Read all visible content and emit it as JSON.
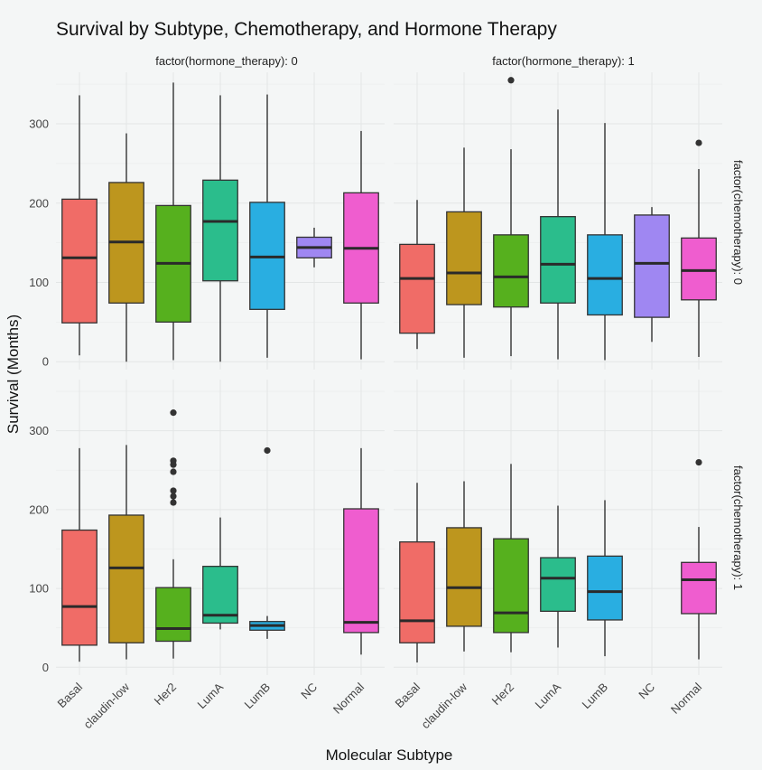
{
  "chart_data": {
    "type": "boxplot",
    "title": "Survival by Subtype, Chemotherapy, and Hormone Therapy",
    "xlabel": "Molecular Subtype",
    "ylabel": "Survival (Months)",
    "ylim": [
      -10,
      365
    ],
    "yticks": [
      0,
      100,
      200,
      300
    ],
    "grid": true,
    "categories": [
      "Basal",
      "claudin-low",
      "Her2",
      "LumA",
      "LumB",
      "NC",
      "Normal"
    ],
    "colors": {
      "Basal": "#f06c67",
      "claudin-low": "#bd961e",
      "Her2": "#56b01e",
      "LumA": "#2bbd8c",
      "LumB": "#29aee1",
      "NC": "#9f87f2",
      "Normal": "#ef5dcf"
    },
    "col_facet_labels": [
      "factor(hormone_therapy): 0",
      "factor(hormone_therapy): 1"
    ],
    "row_facet_labels": [
      "factor(chemotherapy): 0",
      "factor(chemotherapy): 1"
    ],
    "panels": [
      {
        "hormone_therapy": 0,
        "chemotherapy": 0,
        "boxes": [
          {
            "category": "Basal",
            "lower_whisker": 8,
            "q1": 49,
            "median": 131,
            "q3": 205,
            "upper_whisker": 336,
            "outliers": []
          },
          {
            "category": "claudin-low",
            "lower_whisker": 0,
            "q1": 74,
            "median": 151,
            "q3": 226,
            "upper_whisker": 288,
            "outliers": []
          },
          {
            "category": "Her2",
            "lower_whisker": 2,
            "q1": 50,
            "median": 124,
            "q3": 197,
            "upper_whisker": 352,
            "outliers": []
          },
          {
            "category": "LumA",
            "lower_whisker": 0,
            "q1": 102,
            "median": 177,
            "q3": 229,
            "upper_whisker": 336,
            "outliers": []
          },
          {
            "category": "LumB",
            "lower_whisker": 5,
            "q1": 66,
            "median": 132,
            "q3": 201,
            "upper_whisker": 337,
            "outliers": []
          },
          {
            "category": "NC",
            "lower_whisker": 119,
            "q1": 131,
            "median": 144,
            "q3": 157,
            "upper_whisker": 169,
            "outliers": []
          },
          {
            "category": "Normal",
            "lower_whisker": 3,
            "q1": 74,
            "median": 143,
            "q3": 213,
            "upper_whisker": 291,
            "outliers": []
          }
        ]
      },
      {
        "hormone_therapy": 1,
        "chemotherapy": 0,
        "boxes": [
          {
            "category": "Basal",
            "lower_whisker": 16,
            "q1": 36,
            "median": 105,
            "q3": 148,
            "upper_whisker": 204,
            "outliers": []
          },
          {
            "category": "claudin-low",
            "lower_whisker": 5,
            "q1": 72,
            "median": 112,
            "q3": 189,
            "upper_whisker": 270,
            "outliers": []
          },
          {
            "category": "Her2",
            "lower_whisker": 7,
            "q1": 69,
            "median": 107,
            "q3": 160,
            "upper_whisker": 268,
            "outliers": [
              355
            ]
          },
          {
            "category": "LumA",
            "lower_whisker": 3,
            "q1": 74,
            "median": 123,
            "q3": 183,
            "upper_whisker": 318,
            "outliers": []
          },
          {
            "category": "LumB",
            "lower_whisker": 2,
            "q1": 59,
            "median": 105,
            "q3": 160,
            "upper_whisker": 301,
            "outliers": []
          },
          {
            "category": "NC",
            "lower_whisker": 25,
            "q1": 56,
            "median": 124,
            "q3": 185,
            "upper_whisker": 195,
            "outliers": []
          },
          {
            "category": "Normal",
            "lower_whisker": 6,
            "q1": 78,
            "median": 115,
            "q3": 156,
            "upper_whisker": 243,
            "outliers": [
              276
            ]
          }
        ]
      },
      {
        "hormone_therapy": 0,
        "chemotherapy": 1,
        "boxes": [
          {
            "category": "Basal",
            "lower_whisker": 7,
            "q1": 28,
            "median": 77,
            "q3": 174,
            "upper_whisker": 278,
            "outliers": []
          },
          {
            "category": "claudin-low",
            "lower_whisker": 10,
            "q1": 31,
            "median": 126,
            "q3": 193,
            "upper_whisker": 282,
            "outliers": []
          },
          {
            "category": "Her2",
            "lower_whisker": 11,
            "q1": 33,
            "median": 49,
            "q3": 101,
            "upper_whisker": 137,
            "outliers": [
              209,
              217,
              224,
              248,
              257,
              262,
              323
            ]
          },
          {
            "category": "LumA",
            "lower_whisker": 48,
            "q1": 56,
            "median": 66,
            "q3": 128,
            "upper_whisker": 190,
            "outliers": []
          },
          {
            "category": "LumB",
            "lower_whisker": 36,
            "q1": 47,
            "median": 53,
            "q3": 58,
            "upper_whisker": 65,
            "outliers": [
              275
            ]
          },
          {
            "category": "Normal",
            "lower_whisker": 16,
            "q1": 44,
            "median": 57,
            "q3": 201,
            "upper_whisker": 278,
            "outliers": []
          }
        ]
      },
      {
        "hormone_therapy": 1,
        "chemotherapy": 1,
        "boxes": [
          {
            "category": "Basal",
            "lower_whisker": 6,
            "q1": 31,
            "median": 59,
            "q3": 159,
            "upper_whisker": 234,
            "outliers": []
          },
          {
            "category": "claudin-low",
            "lower_whisker": 20,
            "q1": 52,
            "median": 101,
            "q3": 177,
            "upper_whisker": 236,
            "outliers": []
          },
          {
            "category": "Her2",
            "lower_whisker": 19,
            "q1": 44,
            "median": 69,
            "q3": 163,
            "upper_whisker": 258,
            "outliers": []
          },
          {
            "category": "LumA",
            "lower_whisker": 25,
            "q1": 71,
            "median": 113,
            "q3": 139,
            "upper_whisker": 205,
            "outliers": []
          },
          {
            "category": "LumB",
            "lower_whisker": 14,
            "q1": 60,
            "median": 96,
            "q3": 141,
            "upper_whisker": 212,
            "outliers": []
          },
          {
            "category": "Normal",
            "lower_whisker": 10,
            "q1": 68,
            "median": 111,
            "q3": 133,
            "upper_whisker": 178,
            "outliers": [
              260
            ]
          }
        ]
      }
    ]
  }
}
